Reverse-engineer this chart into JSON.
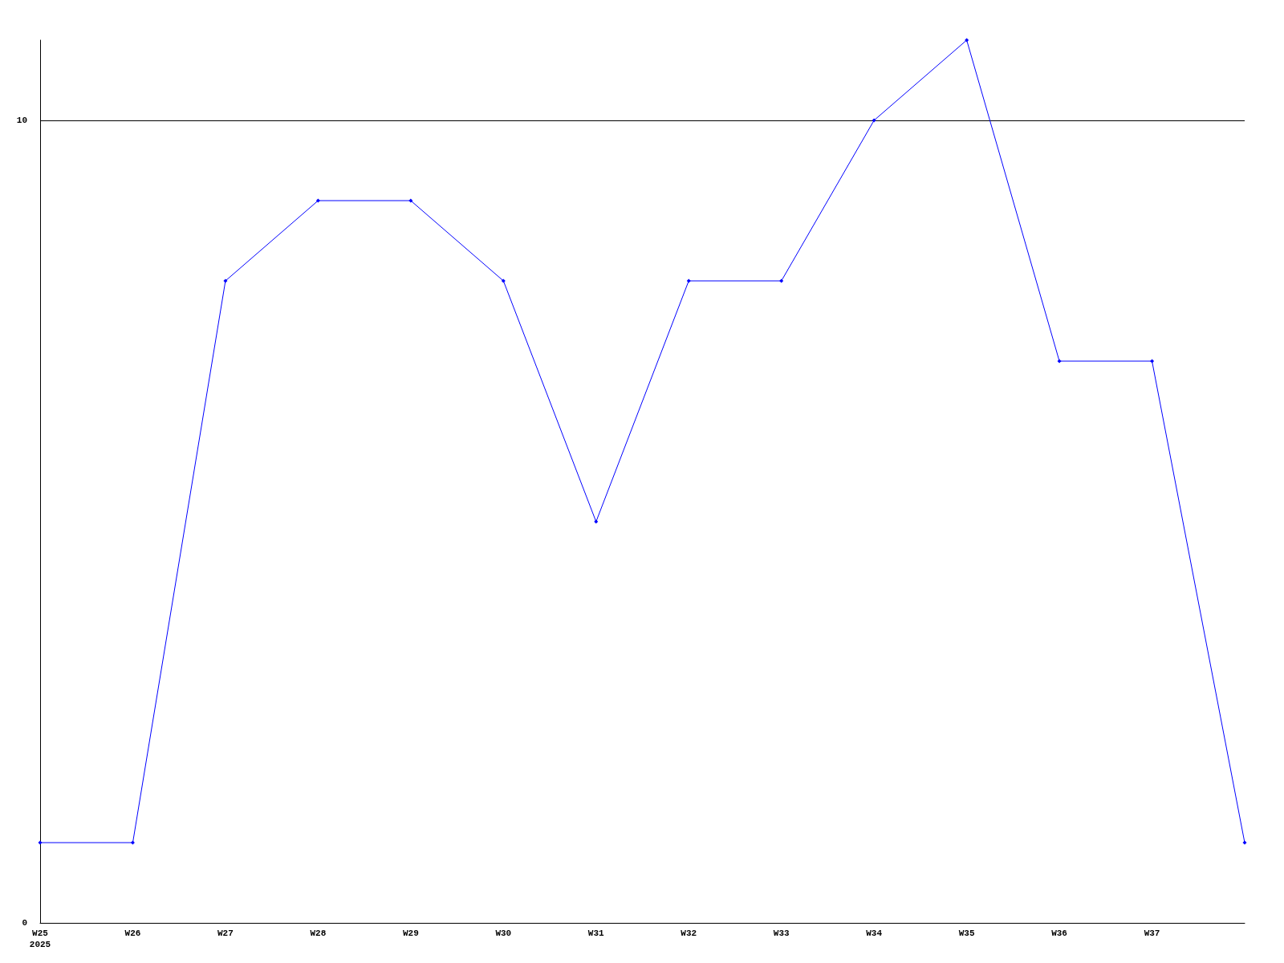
{
  "chart_data": {
    "type": "line",
    "categories": [
      "W25\n2025",
      "W26",
      "W27",
      "W28",
      "W29",
      "W30",
      "W31",
      "W32",
      "W33",
      "W34",
      "W35",
      "W36",
      "W37",
      null
    ],
    "series": [
      {
        "color": "#0000ff",
        "values": [
          1,
          1,
          8,
          9,
          9,
          8,
          5,
          8,
          8,
          10,
          11,
          7,
          7,
          1
        ]
      }
    ],
    "ylim": [
      0,
      11
    ],
    "yticks": [
      0,
      10
    ],
    "grid": "y",
    "marker": "diamond",
    "line_style": "solid"
  }
}
